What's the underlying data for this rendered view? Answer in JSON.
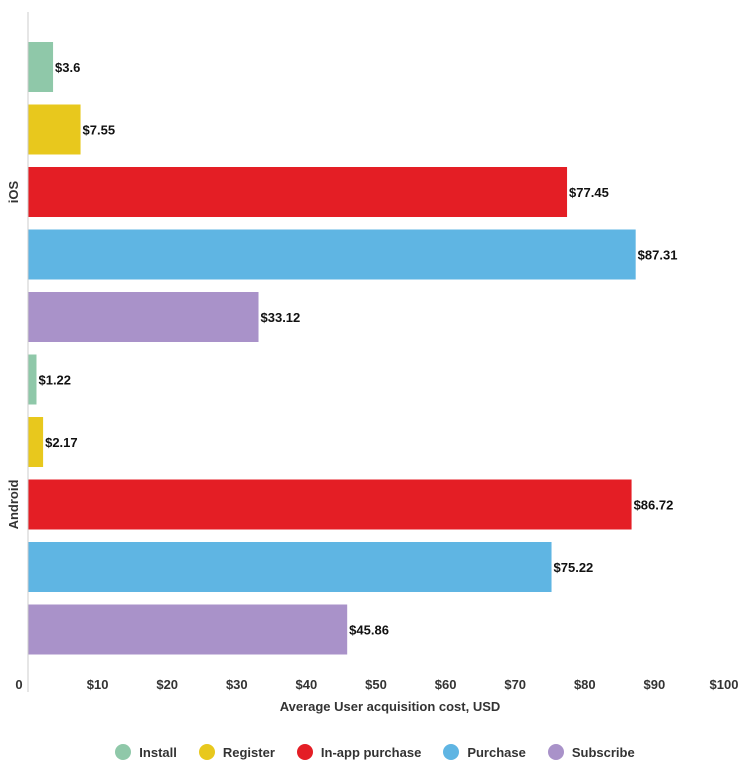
{
  "chart_data": {
    "type": "bar",
    "orientation": "horizontal",
    "title": "",
    "xlabel": "Average User acquisition cost, USD",
    "ylabel": "",
    "xlim": [
      0,
      100
    ],
    "x_ticks": [
      "0",
      "$10",
      "$20",
      "$30",
      "$40",
      "$50",
      "$60",
      "$70",
      "$80",
      "$90",
      "$100"
    ],
    "groups": [
      "iOS",
      "Android"
    ],
    "series": [
      {
        "name": "Install",
        "color": "#8fc8a9",
        "values": [
          3.6,
          1.22
        ],
        "labels": [
          "$3.6",
          "$1.22"
        ]
      },
      {
        "name": "Register",
        "color": "#e8c81d",
        "values": [
          7.55,
          2.17
        ],
        "labels": [
          "$7.55",
          "$2.17"
        ]
      },
      {
        "name": "In-app purchase",
        "color": "#e41e25",
        "values": [
          77.45,
          86.72
        ],
        "labels": [
          "$77.45",
          "$86.72"
        ]
      },
      {
        "name": "Purchase",
        "color": "#5fb5e3",
        "values": [
          87.31,
          75.22
        ],
        "labels": [
          "$87.31",
          "$75.22"
        ]
      },
      {
        "name": "Subscribe",
        "color": "#a992c9",
        "values": [
          33.12,
          45.86
        ],
        "labels": [
          "$33.12",
          "$45.86"
        ]
      }
    ],
    "legend_position": "bottom-center",
    "grid": false
  }
}
